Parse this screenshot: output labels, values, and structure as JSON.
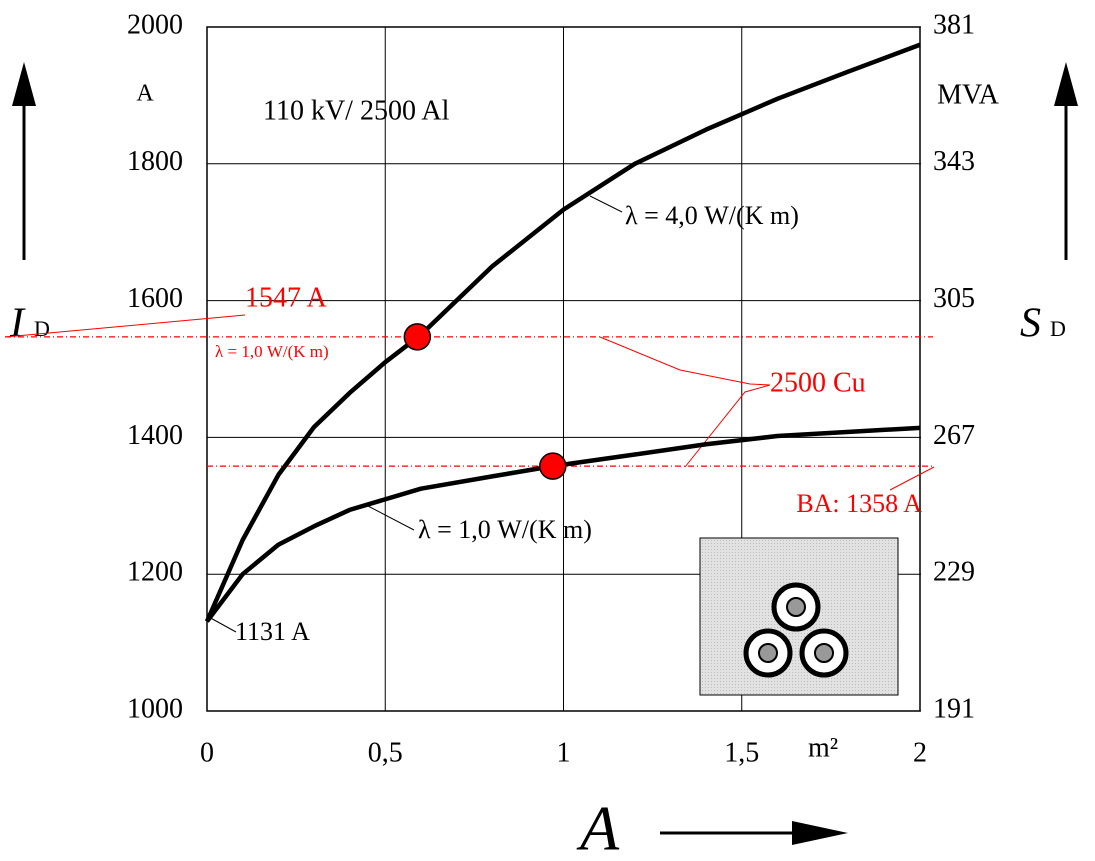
{
  "chart_data": {
    "type": "line",
    "title": "110 kV/ 2500 Al",
    "y_label": "I",
    "y_label_sub": "D",
    "y_unit": "A",
    "y2_label": "S",
    "y2_label_sub": "D",
    "y2_unit": "MVA",
    "x_label": "A",
    "x_unit": "m²",
    "xlim": [
      0,
      2
    ],
    "xticks": [
      0,
      {
        "value": 0.5,
        "label": "0,5"
      },
      1,
      {
        "value": 1.5,
        "label": "1,5"
      },
      2
    ],
    "ylim": [
      1000,
      2000
    ],
    "yticks": [
      1000,
      1200,
      1400,
      1600,
      1800,
      2000
    ],
    "y2lim": [
      191,
      381
    ],
    "y2ticks": [
      191,
      229,
      267,
      305,
      343,
      381
    ],
    "grid": true,
    "series": [
      {
        "name": "λ = 4,0 W/(K m)",
        "color": "#000000",
        "x": [
          0,
          0.1,
          0.2,
          0.3,
          0.4,
          0.5,
          0.6,
          0.8,
          1,
          1.2,
          1.4,
          1.6,
          1.8,
          2
        ],
        "values": [
          1131,
          1250,
          1345,
          1415,
          1465,
          1510,
          1550,
          1650,
          1733,
          1800,
          1850,
          1895,
          1935,
          1974
        ]
      },
      {
        "name": "λ = 1,0 W/(K m)",
        "color": "#000000",
        "x": [
          0,
          0.1,
          0.2,
          0.3,
          0.4,
          0.6,
          0.8,
          0.97,
          1.2,
          1.4,
          1.6,
          2
        ],
        "values": [
          1131,
          1200,
          1243,
          1270,
          1294,
          1325,
          1343,
          1358,
          1375,
          1390,
          1402,
          1414
        ]
      }
    ],
    "points": [
      {
        "x": 0.59,
        "y": 1547,
        "color": "#ff0000"
      },
      {
        "x": 0.97,
        "y": 1358,
        "color": "#ff0000"
      }
    ],
    "reference_lines": [
      {
        "value": 1547,
        "label": "1547 A",
        "note": "λ = 1,0 W/(K m)",
        "color": "#ff0000"
      },
      {
        "value": 1358,
        "label": "BA: 1358 A",
        "color": "#ff0000"
      }
    ],
    "start_label": "1131 A",
    "cu_label": "2500 Cu"
  }
}
